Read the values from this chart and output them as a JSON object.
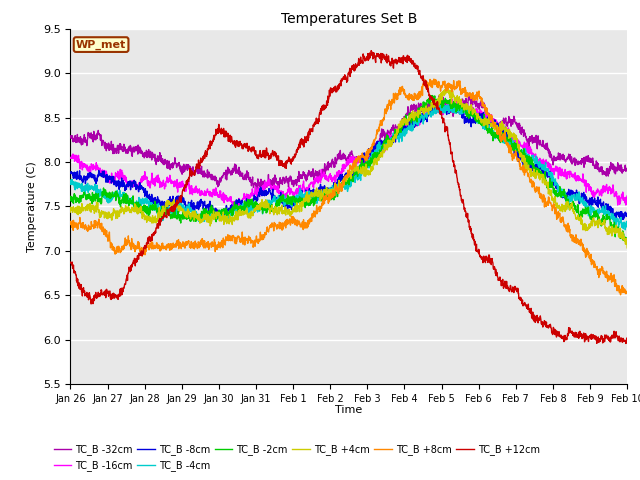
{
  "title": "Temperatures Set B",
  "xlabel": "Time",
  "ylabel": "Temperature (C)",
  "ylim": [
    5.5,
    9.5
  ],
  "yticks": [
    5.5,
    6.0,
    6.5,
    7.0,
    7.5,
    8.0,
    8.5,
    9.0,
    9.5
  ],
  "xtick_labels": [
    "Jan 26",
    "Jan 27",
    "Jan 28",
    "Jan 29",
    "Jan 30",
    "Jan 31",
    "Feb 1",
    "Feb 2",
    "Feb 3",
    "Feb 4",
    "Feb 5",
    "Feb 6",
    "Feb 7",
    "Feb 8",
    "Feb 9",
    "Feb 10"
  ],
  "series": [
    {
      "label": "TC_B -32cm",
      "color": "#aa00aa",
      "lw": 1.0
    },
    {
      "label": "TC_B -16cm",
      "color": "#ff00ff",
      "lw": 1.0
    },
    {
      "label": "TC_B -8cm",
      "color": "#0000dd",
      "lw": 1.0
    },
    {
      "label": "TC_B -4cm",
      "color": "#00cccc",
      "lw": 1.0
    },
    {
      "label": "TC_B -2cm",
      "color": "#00cc00",
      "lw": 1.0
    },
    {
      "label": "TC_B +4cm",
      "color": "#cccc00",
      "lw": 1.0
    },
    {
      "label": "TC_B +8cm",
      "color": "#ff8800",
      "lw": 1.0
    },
    {
      "label": "TC_B +12cm",
      "color": "#cc0000",
      "lw": 1.0
    }
  ],
  "wp_met_box_facecolor": "#ffffcc",
  "wp_met_box_edgecolor": "#993300",
  "wp_met_text_color": "#993300",
  "background_color": "#e8e8e8",
  "grid_color": "#ffffff",
  "n_days": 15,
  "n_points": 2000
}
